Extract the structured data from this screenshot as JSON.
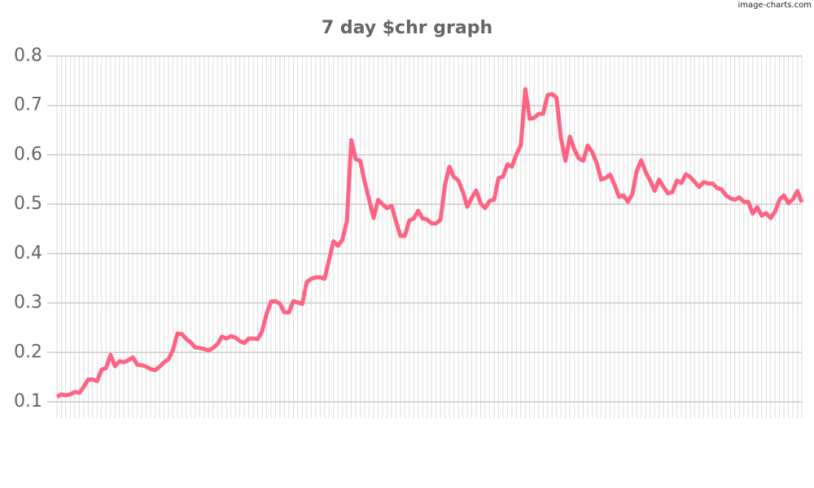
{
  "chart_data": {
    "type": "line",
    "title": "7 day $chr graph",
    "watermark": "image-charts.com",
    "color": "#ff6384",
    "values": [
      0.11,
      0.115,
      0.113,
      0.115,
      0.12,
      0.118,
      0.13,
      0.145,
      0.145,
      0.142,
      0.165,
      0.168,
      0.195,
      0.172,
      0.182,
      0.18,
      0.184,
      0.19,
      0.175,
      0.174,
      0.171,
      0.166,
      0.164,
      0.171,
      0.18,
      0.186,
      0.205,
      0.238,
      0.237,
      0.227,
      0.22,
      0.21,
      0.209,
      0.207,
      0.204,
      0.209,
      0.217,
      0.232,
      0.228,
      0.233,
      0.23,
      0.223,
      0.219,
      0.228,
      0.228,
      0.227,
      0.243,
      0.278,
      0.303,
      0.304,
      0.298,
      0.281,
      0.281,
      0.304,
      0.301,
      0.298,
      0.342,
      0.349,
      0.352,
      0.352,
      0.349,
      0.387,
      0.425,
      0.416,
      0.428,
      0.466,
      0.63,
      0.591,
      0.588,
      0.545,
      0.509,
      0.472,
      0.509,
      0.5,
      0.492,
      0.497,
      0.466,
      0.436,
      0.436,
      0.467,
      0.471,
      0.487,
      0.471,
      0.469,
      0.461,
      0.461,
      0.469,
      0.54,
      0.576,
      0.555,
      0.548,
      0.525,
      0.495,
      0.513,
      0.528,
      0.502,
      0.492,
      0.507,
      0.509,
      0.553,
      0.556,
      0.581,
      0.576,
      0.601,
      0.619,
      0.733,
      0.673,
      0.675,
      0.683,
      0.683,
      0.721,
      0.723,
      0.716,
      0.634,
      0.588,
      0.637,
      0.611,
      0.593,
      0.588,
      0.619,
      0.606,
      0.584,
      0.55,
      0.553,
      0.56,
      0.54,
      0.515,
      0.518,
      0.505,
      0.52,
      0.568,
      0.589,
      0.565,
      0.548,
      0.527,
      0.55,
      0.535,
      0.522,
      0.525,
      0.548,
      0.543,
      0.561,
      0.555,
      0.545,
      0.535,
      0.545,
      0.542,
      0.542,
      0.533,
      0.53,
      0.518,
      0.512,
      0.509,
      0.514,
      0.505,
      0.505,
      0.481,
      0.494,
      0.477,
      0.482,
      0.472,
      0.485,
      0.509,
      0.518,
      0.502,
      0.51,
      0.527,
      0.504
    ],
    "ylim": [
      0.067,
      0.8
    ],
    "yticks": [
      0.1,
      0.2,
      0.3,
      0.4,
      0.5,
      0.6,
      0.7,
      0.8
    ],
    "grid": true
  }
}
